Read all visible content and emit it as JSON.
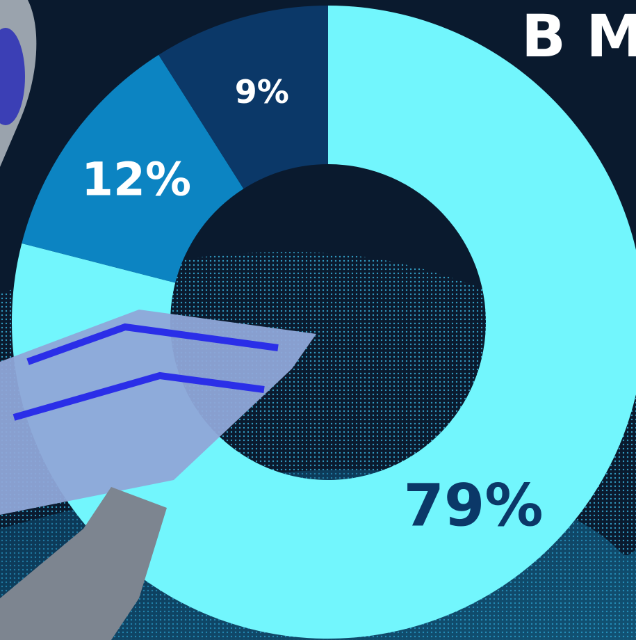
{
  "chart_data": {
    "type": "donut",
    "title": "B M",
    "values": [
      79,
      12,
      9
    ],
    "value_labels": [
      "79%",
      "12%",
      "9%"
    ],
    "colors": [
      "#72f6fd",
      "#0c84c2",
      "#0b3868"
    ]
  }
}
